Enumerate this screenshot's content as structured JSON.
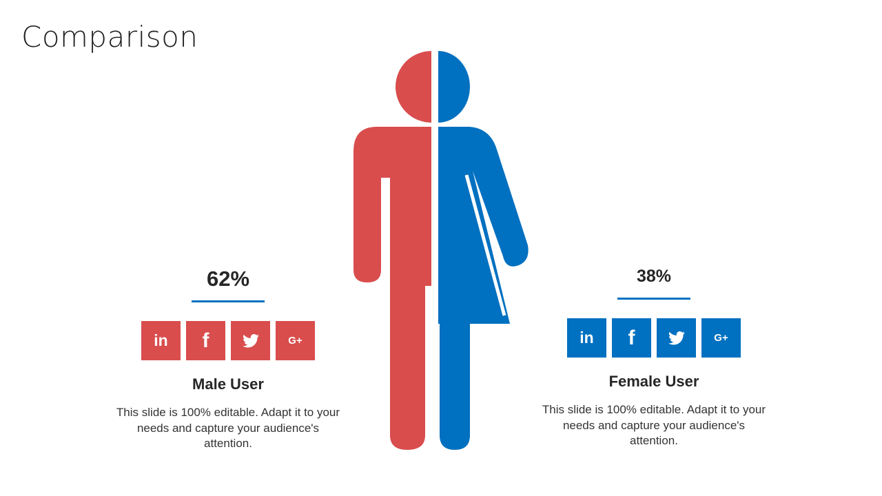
{
  "title": "Comparison",
  "colors": {
    "male": "#d94d4d",
    "female": "#0070c0",
    "rule": "#0070c0"
  },
  "figure": {
    "left_half_icon": "male-figure-icon",
    "right_half_icon": "female-figure-icon"
  },
  "male": {
    "percent": "62%",
    "name": "Male User",
    "description": "This slide is 100% editable. Adapt it to your needs and capture your audience's attention.",
    "social": [
      {
        "icon": "linkedin-icon",
        "glyph": "in"
      },
      {
        "icon": "facebook-icon",
        "glyph": "f"
      },
      {
        "icon": "twitter-icon",
        "glyph": "bird"
      },
      {
        "icon": "google-plus-icon",
        "glyph": "G+"
      }
    ]
  },
  "female": {
    "percent": "38%",
    "name": "Female User",
    "description": "This slide is 100% editable. Adapt it to your needs and capture your audience's attention.",
    "social": [
      {
        "icon": "linkedin-icon",
        "glyph": "in"
      },
      {
        "icon": "facebook-icon",
        "glyph": "f"
      },
      {
        "icon": "twitter-icon",
        "glyph": "bird"
      },
      {
        "icon": "google-plus-icon",
        "glyph": "G+"
      }
    ]
  }
}
